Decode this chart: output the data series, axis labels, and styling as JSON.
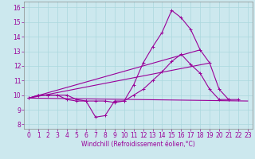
{
  "xlabel": "Windchill (Refroidissement éolien,°C)",
  "background_color": "#cce8ee",
  "line_color": "#990099",
  "xlim_min": -0.5,
  "xlim_max": 23.5,
  "ylim_min": 7.7,
  "ylim_max": 16.4,
  "xticks": [
    0,
    1,
    2,
    3,
    4,
    5,
    6,
    7,
    8,
    9,
    10,
    11,
    12,
    13,
    14,
    15,
    16,
    17,
    18,
    19,
    20,
    21,
    22,
    23
  ],
  "yticks": [
    8,
    9,
    10,
    11,
    12,
    13,
    14,
    15,
    16
  ],
  "curve1_x": [
    0,
    1,
    2,
    3,
    4,
    5,
    6,
    7,
    8,
    9,
    10,
    11,
    12,
    13,
    14,
    15,
    16,
    17,
    18,
    19,
    20,
    21,
    22
  ],
  "curve1_y": [
    9.8,
    10.0,
    10.0,
    10.0,
    10.0,
    9.7,
    9.6,
    9.6,
    9.6,
    9.5,
    9.6,
    10.7,
    12.2,
    13.3,
    14.3,
    15.8,
    15.3,
    14.5,
    13.1,
    12.2,
    10.4,
    9.7,
    9.7
  ],
  "curve2_x": [
    0,
    1,
    2,
    3,
    4,
    5,
    6,
    7,
    8,
    9,
    10,
    11,
    12,
    13,
    14,
    15,
    16,
    17,
    18,
    19,
    20,
    21
  ],
  "curve2_y": [
    9.8,
    10.0,
    10.0,
    10.0,
    9.7,
    9.6,
    9.6,
    8.5,
    8.6,
    9.6,
    9.6,
    10.0,
    10.4,
    11.0,
    11.6,
    12.3,
    12.8,
    12.1,
    11.5,
    10.4,
    9.7,
    9.7
  ],
  "line3_x": [
    0,
    23
  ],
  "line3_y": [
    9.8,
    9.6
  ],
  "line4_x": [
    0,
    19
  ],
  "line4_y": [
    9.8,
    12.2
  ],
  "line5_x": [
    0,
    18
  ],
  "line5_y": [
    9.8,
    13.1
  ],
  "grid_color": "#aad8dd",
  "tick_fontsize": 5.5,
  "xlabel_fontsize": 5.5,
  "lw": 0.8,
  "marker_size": 3.0
}
